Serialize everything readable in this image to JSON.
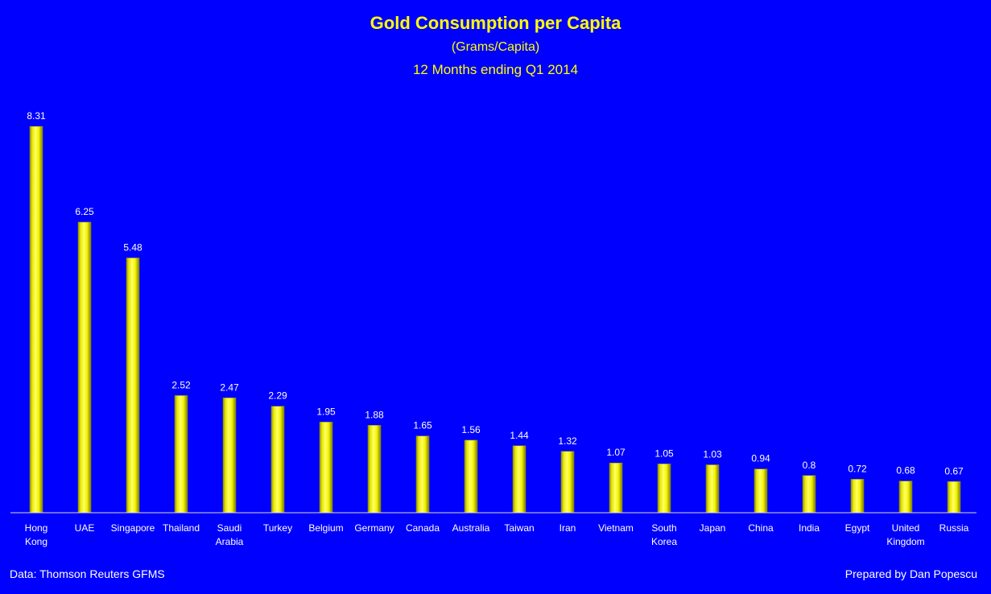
{
  "chart_data": {
    "type": "bar",
    "title": "Gold Consumption per Capita",
    "subtitle": "(Grams/Capita)",
    "subtitle2": "12 Months ending Q1 2014",
    "categories": [
      "Hong Kong",
      "UAE",
      "Singapore",
      "Thailand",
      "Saudi Arabia",
      "Turkey",
      "Belgium",
      "Germany",
      "Canada",
      "Australia",
      "Taiwan",
      "Iran",
      "Vietnam",
      "South Korea",
      "Japan",
      "China",
      "India",
      "Egypt",
      "United Kingdom",
      "Russia"
    ],
    "category_lines": [
      [
        "Hong",
        "Kong"
      ],
      [
        "UAE"
      ],
      [
        "Singapore"
      ],
      [
        "Thailand"
      ],
      [
        "Saudi",
        "Arabia"
      ],
      [
        "Turkey"
      ],
      [
        "Belgium"
      ],
      [
        "Germany"
      ],
      [
        "Canada"
      ],
      [
        "Australia"
      ],
      [
        "Taiwan"
      ],
      [
        "Iran"
      ],
      [
        "Vietnam"
      ],
      [
        "South",
        "Korea"
      ],
      [
        "Japan"
      ],
      [
        "China"
      ],
      [
        "India"
      ],
      [
        "Egypt"
      ],
      [
        "United",
        "Kingdom"
      ],
      [
        "Russia"
      ]
    ],
    "values": [
      8.31,
      6.25,
      5.48,
      2.52,
      2.47,
      2.29,
      1.95,
      1.88,
      1.65,
      1.56,
      1.44,
      1.32,
      1.07,
      1.05,
      1.03,
      0.94,
      0.8,
      0.72,
      0.68,
      0.67
    ],
    "ylim": [
      0,
      8.31
    ],
    "xlabel": "",
    "ylabel": "",
    "source": "Data: Thomson Reuters GFMS",
    "credit": "Prepared by Dan Popescu",
    "colors": {
      "background": "#0000fe",
      "bar": "#ffff00",
      "text_title": "#ffff00",
      "text_labels": "#ffffff"
    }
  }
}
